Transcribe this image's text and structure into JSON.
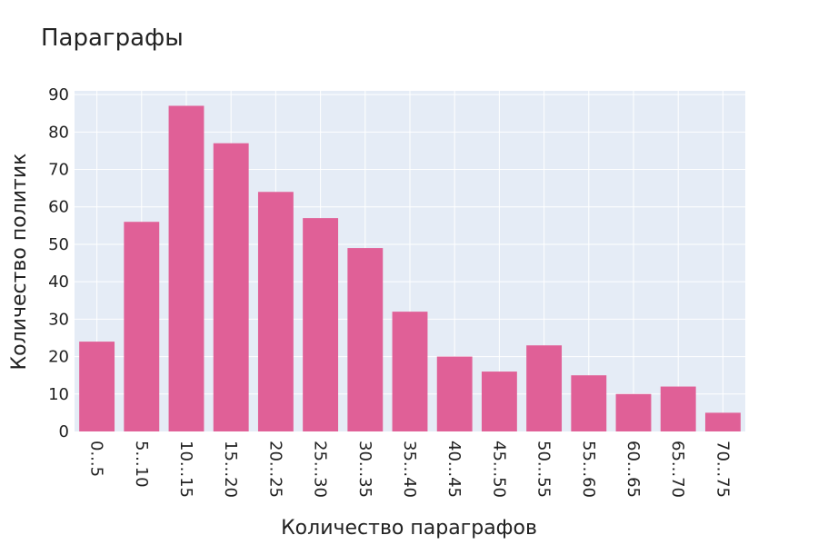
{
  "colors": {
    "plot_bg": "#e5ecf6",
    "grid": "#ffffff",
    "bar": "#e06097",
    "text": "#222222"
  },
  "chart_data": {
    "type": "bar",
    "title": "Параграфы",
    "xlabel": "Количество параграфов",
    "ylabel": "Количество политик",
    "categories": [
      "0...5",
      "5...10",
      "10...15",
      "15...20",
      "20...25",
      "25...30",
      "30...35",
      "35...40",
      "40...45",
      "45...50",
      "50...55",
      "55...60",
      "60...65",
      "65...70",
      "70...75"
    ],
    "values": [
      24,
      56,
      87,
      77,
      64,
      57,
      49,
      32,
      20,
      16,
      23,
      15,
      10,
      12,
      5
    ],
    "ylim": [
      0,
      91
    ],
    "yticks": [
      0,
      10,
      20,
      30,
      40,
      50,
      60,
      70,
      80,
      90
    ],
    "grid": true,
    "legend": "none"
  }
}
